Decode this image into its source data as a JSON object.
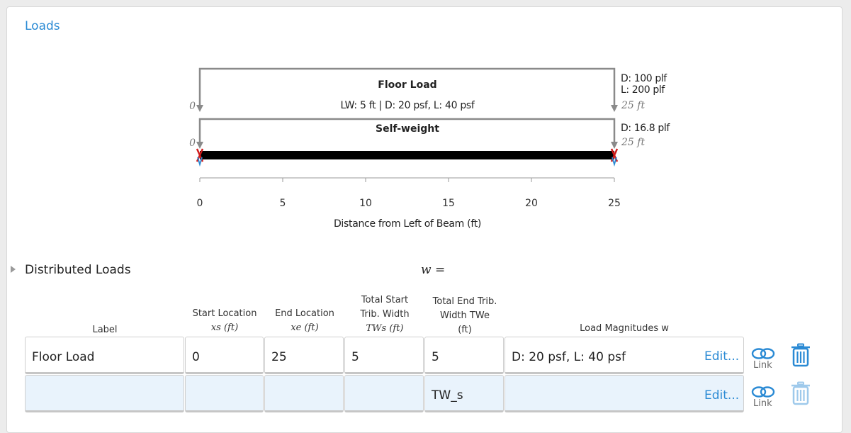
{
  "section": {
    "title": "Loads"
  },
  "diagram": {
    "floor_load": {
      "title": "Floor Load",
      "summary": "LW: 5 ft | D: 20 psf, L: 40 psf",
      "start_label": "0",
      "end_dead": "D: 100 plf",
      "end_live": "L: 200 plf",
      "end_length": "25 ft"
    },
    "self_weight": {
      "title": "Self-weight",
      "start_label": "0",
      "end_dead": "D: 16.8 plf",
      "end_length": "25 ft"
    },
    "axis": {
      "label": "Distance from Left of Beam (ft)",
      "ticks": [
        "0",
        "5",
        "10",
        "15",
        "20",
        "25"
      ]
    },
    "colors": {
      "load_line": "#8a8a8a",
      "beam": "#000000",
      "support_red": "#d11b1b",
      "support_blue": "#2a8ad4"
    }
  },
  "distributed_loads": {
    "title": "Distributed Loads",
    "formula": "w =",
    "columns": {
      "label": "Label",
      "start_location": "Start Location",
      "start_location_var": "xs (ft)",
      "end_location": "End Location",
      "end_location_var": "xe (ft)",
      "total_start_trib_line1": "Total Start",
      "total_start_trib_line2": "Trib. Width",
      "total_start_trib_var": "TWs (ft)",
      "total_end_trib_line1": "Total End Trib.",
      "total_end_trib_line2": "Width TWe",
      "total_end_trib_unit": "(ft)",
      "load_magnitudes": "Load Magnitudes w"
    },
    "rows": [
      {
        "label": "Floor Load",
        "start": "0",
        "end": "25",
        "tw_start": "5",
        "tw_end": "5",
        "magnitudes": "D: 20 psf, L: 40 psf",
        "edit": "Edit...",
        "link": "Link"
      },
      {
        "label": "",
        "start": "",
        "end": "",
        "tw_start": "",
        "tw_end": "TW_s",
        "magnitudes": "",
        "edit": "Edit...",
        "link": "Link"
      }
    ]
  },
  "icons": {
    "link": "link-icon",
    "trash": "trash-icon",
    "toggle": "caret-right-icon"
  }
}
